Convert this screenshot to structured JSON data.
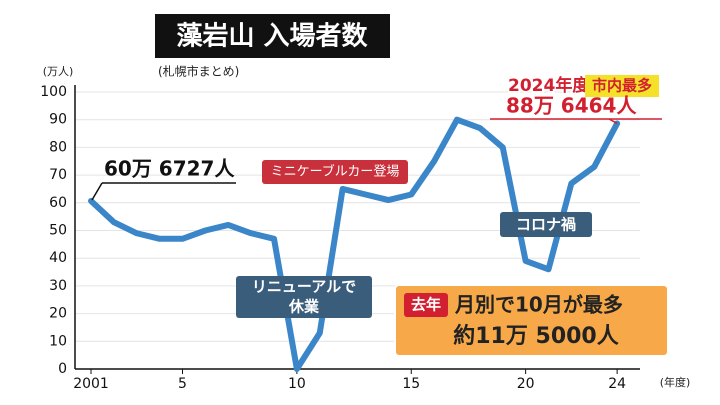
{
  "chart_data": {
    "type": "line",
    "title": "藻岩山 入場者数",
    "subtitle": "(札幌市まとめ)",
    "y_unit": "(万人)",
    "x_unit": "(年度)",
    "x": [
      2001,
      2002,
      2003,
      2004,
      2005,
      2006,
      2007,
      2008,
      2009,
      2010,
      2011,
      2012,
      2013,
      2014,
      2015,
      2016,
      2017,
      2018,
      2019,
      2020,
      2021,
      2022,
      2023,
      2024
    ],
    "values": [
      60.6727,
      53,
      49,
      47,
      47,
      50,
      52,
      49,
      47,
      0,
      13,
      65,
      63,
      61,
      63,
      75,
      90,
      87,
      80,
      39,
      36,
      67,
      73,
      88.6464
    ],
    "color": "#3a86c8",
    "xlim": [
      2000.3,
      2025
    ],
    "ylim": [
      0,
      100
    ],
    "xticks": [
      2001,
      {
        "value": 2005,
        "label": "5"
      },
      {
        "value": 2010,
        "label": "10"
      },
      {
        "value": 2015,
        "label": "15"
      },
      {
        "value": 2020,
        "label": "20"
      },
      {
        "value": 2024,
        "label": "24"
      }
    ],
    "yticks": [
      0,
      10,
      20,
      30,
      40,
      50,
      60,
      70,
      80,
      90,
      100
    ],
    "grid": true,
    "annotations": {
      "first": "60万 6727人",
      "cable": "ミニケーブルカー登場",
      "renewal": [
        "リニューアルで",
        "休業"
      ],
      "corona": "コロナ禍",
      "record_year": "2024年度",
      "record_tag": "市内最多",
      "last": "88万 6464人",
      "box_tag": "去年",
      "box_line1": "月別で10月が最多",
      "box_line2": "約11万 5000人"
    }
  }
}
